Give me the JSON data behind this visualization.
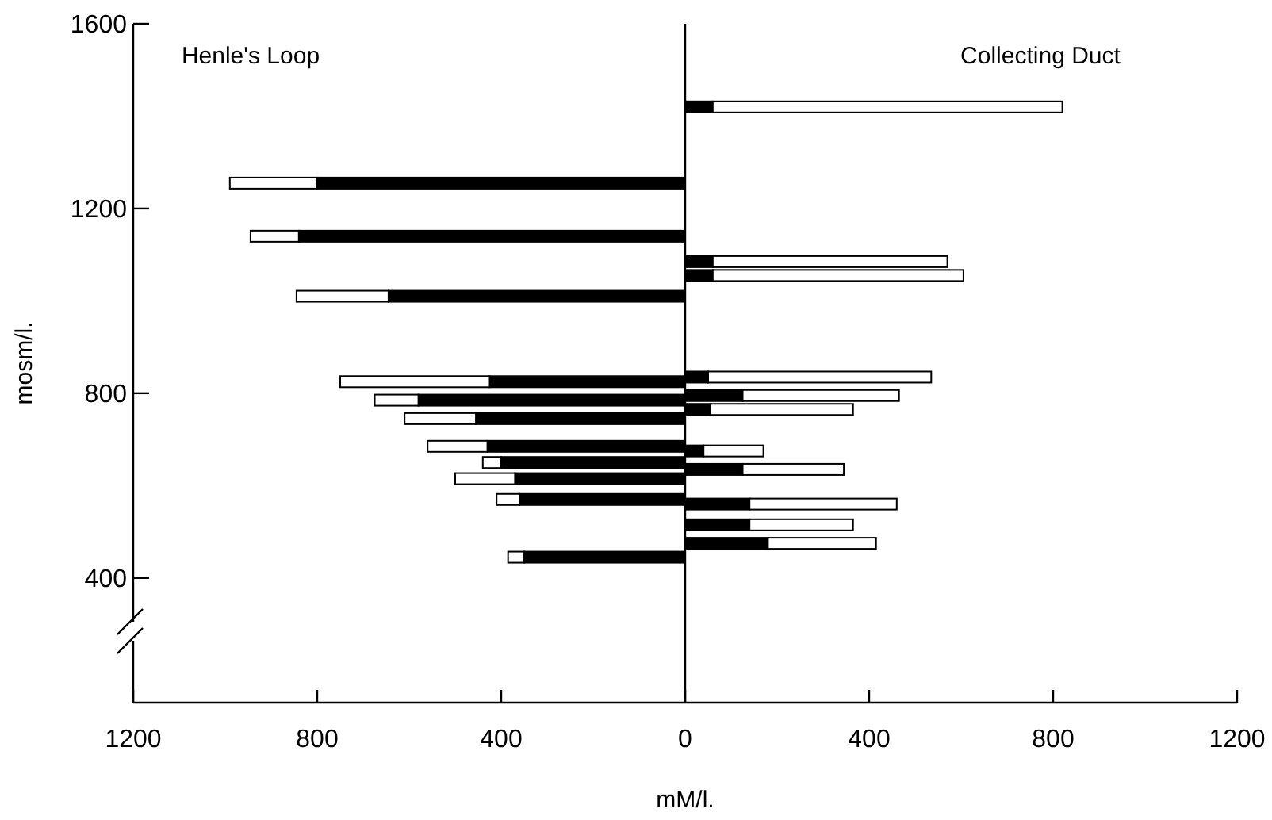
{
  "chart_data": {
    "type": "bar",
    "orientation": "horizontal",
    "stacked": true,
    "xlabel": "mM/l.",
    "ylabel": "mosm/l.",
    "annotations": [
      "Henle's Loop",
      "Collecting Duct"
    ],
    "x": [
      445,
      475,
      515,
      560,
      570,
      615,
      635,
      650,
      675,
      685,
      745,
      765,
      785,
      795,
      825,
      835,
      1010,
      1055,
      1085,
      1140,
      1255,
      1420
    ],
    "series": [
      {
        "color": "#000000",
        "values": [
          -350,
          180,
          140,
          140,
          -360,
          -370,
          125,
          -400,
          40,
          -430,
          -455,
          55,
          -580,
          125,
          -425,
          50,
          -645,
          60,
          60,
          -840,
          -800,
          60
        ]
      },
      {
        "color": "#ffffff",
        "values": [
          -35,
          235,
          225,
          320,
          -50,
          -130,
          220,
          -40,
          130,
          -130,
          -155,
          310,
          -95,
          340,
          -325,
          485,
          -200,
          545,
          510,
          -105,
          -190,
          760
        ]
      }
    ],
    "xlim": [
      -1200,
      1200
    ],
    "xticks": [
      {
        "value": -1200,
        "label": "1200"
      },
      {
        "value": -800,
        "label": "800"
      },
      {
        "value": -400,
        "label": "400"
      },
      0,
      400,
      800,
      1200
    ],
    "ylim": [
      130,
      1600
    ],
    "yticks": [
      400,
      800,
      1200,
      1600
    ],
    "ref_lines": [
      {
        "axis": "x",
        "value": 0,
        "color": "#000000"
      }
    ],
    "grid": false
  }
}
